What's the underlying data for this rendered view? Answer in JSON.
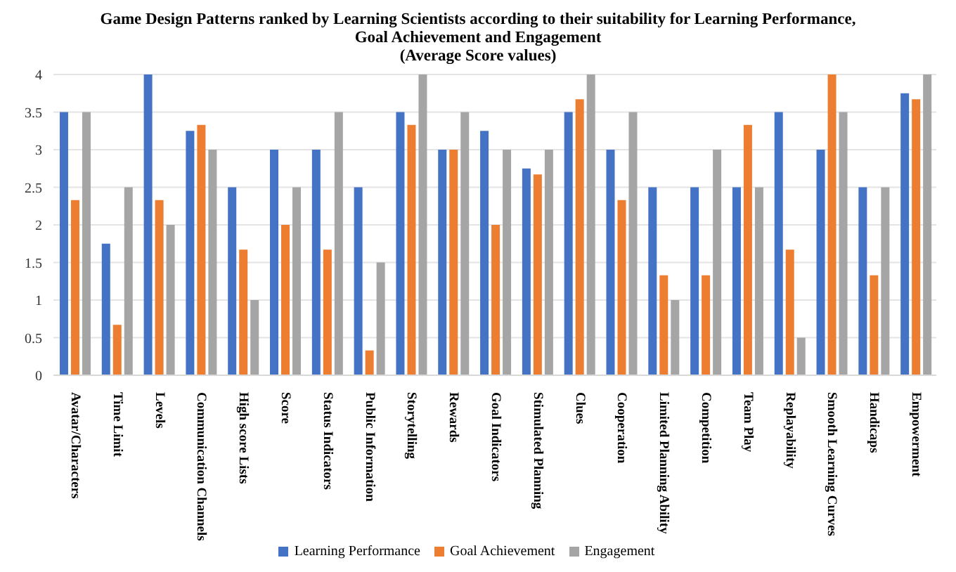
{
  "chart_data": {
    "type": "bar",
    "title": "Game Design Patterns ranked by Learning Scientists according to their suitability for Learning Performance, Goal Achievement and Engagement",
    "subtitle": "(Average Score values)",
    "categories": [
      "Avatar/Characters",
      "Time Limit",
      "Levels",
      "Communication Channels",
      "High score Lists",
      "Score",
      "Status Indicators",
      "Public Information",
      "Storytelling",
      "Rewards",
      "Goal Indicators",
      "Stimulated Planning",
      "Clues",
      "Cooperation",
      "Limited Planning Ability",
      "Competition",
      "Team Play",
      "Replayability",
      "Smooth Learning Curves",
      "Handicaps",
      "Empowerment"
    ],
    "series": [
      {
        "name": "Learning Performance",
        "color": "#4472c4",
        "values": [
          3.5,
          1.75,
          4,
          3.25,
          2.5,
          3,
          3,
          2.5,
          3.5,
          3,
          3.25,
          2.75,
          3.5,
          3,
          2.5,
          2.5,
          2.5,
          3.5,
          3,
          2.5,
          3.75
        ]
      },
      {
        "name": "Goal Achievement",
        "color": "#ed7d31",
        "values": [
          2.33,
          0.67,
          2.33,
          3.33,
          1.67,
          2,
          1.67,
          0.33,
          3.33,
          3,
          2,
          2.67,
          3.67,
          2.33,
          1.33,
          1.33,
          3.33,
          1.67,
          4,
          1.33,
          3.67
        ]
      },
      {
        "name": "Engagement",
        "color": "#a5a5a5",
        "values": [
          3.5,
          2.5,
          2,
          3,
          1,
          2.5,
          3.5,
          1.5,
          4,
          3.5,
          3,
          3,
          4,
          3.5,
          1,
          3,
          2.5,
          0.5,
          3.5,
          2.5,
          4
        ]
      }
    ],
    "ylim": [
      0,
      4
    ],
    "yticks": [
      0,
      0.5,
      1,
      1.5,
      2,
      2.5,
      3,
      3.5,
      4
    ],
    "grid": "y",
    "legend": "bottom"
  }
}
